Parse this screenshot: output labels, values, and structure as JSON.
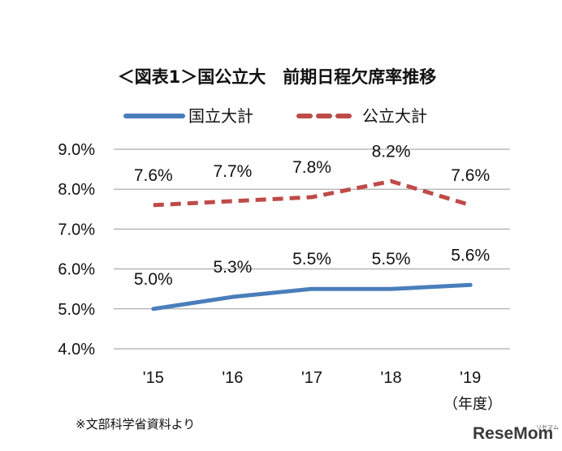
{
  "chart_data": {
    "type": "line",
    "title": "＜図表1＞国公立大　前期日程欠席率推移",
    "categories": [
      "'15",
      "'16",
      "'17",
      "'18",
      "'19"
    ],
    "x_unit": "（年度）",
    "ylim": [
      4.0,
      9.0
    ],
    "yticks": [
      "9.0%",
      "8.0%",
      "7.0%",
      "6.0%",
      "5.0%",
      "4.0%"
    ],
    "grid": true,
    "legend_position": "top",
    "series": [
      {
        "name": "国立大計",
        "values": [
          5.0,
          5.3,
          5.5,
          5.5,
          5.6
        ],
        "labels": [
          "5.0%",
          "5.3%",
          "5.5%",
          "5.5%",
          "5.6%"
        ],
        "color": "#4a7ebb",
        "style": "solid"
      },
      {
        "name": "公立大計",
        "values": [
          7.6,
          7.7,
          7.8,
          8.2,
          7.6
        ],
        "labels": [
          "7.6%",
          "7.7%",
          "7.8%",
          "8.2%",
          "7.6%"
        ],
        "color": "#be4b48",
        "style": "dashed"
      }
    ]
  },
  "source_note": "※文部科学省資料より",
  "logo": {
    "text": "ReseMom",
    "sub": "リセマム"
  }
}
